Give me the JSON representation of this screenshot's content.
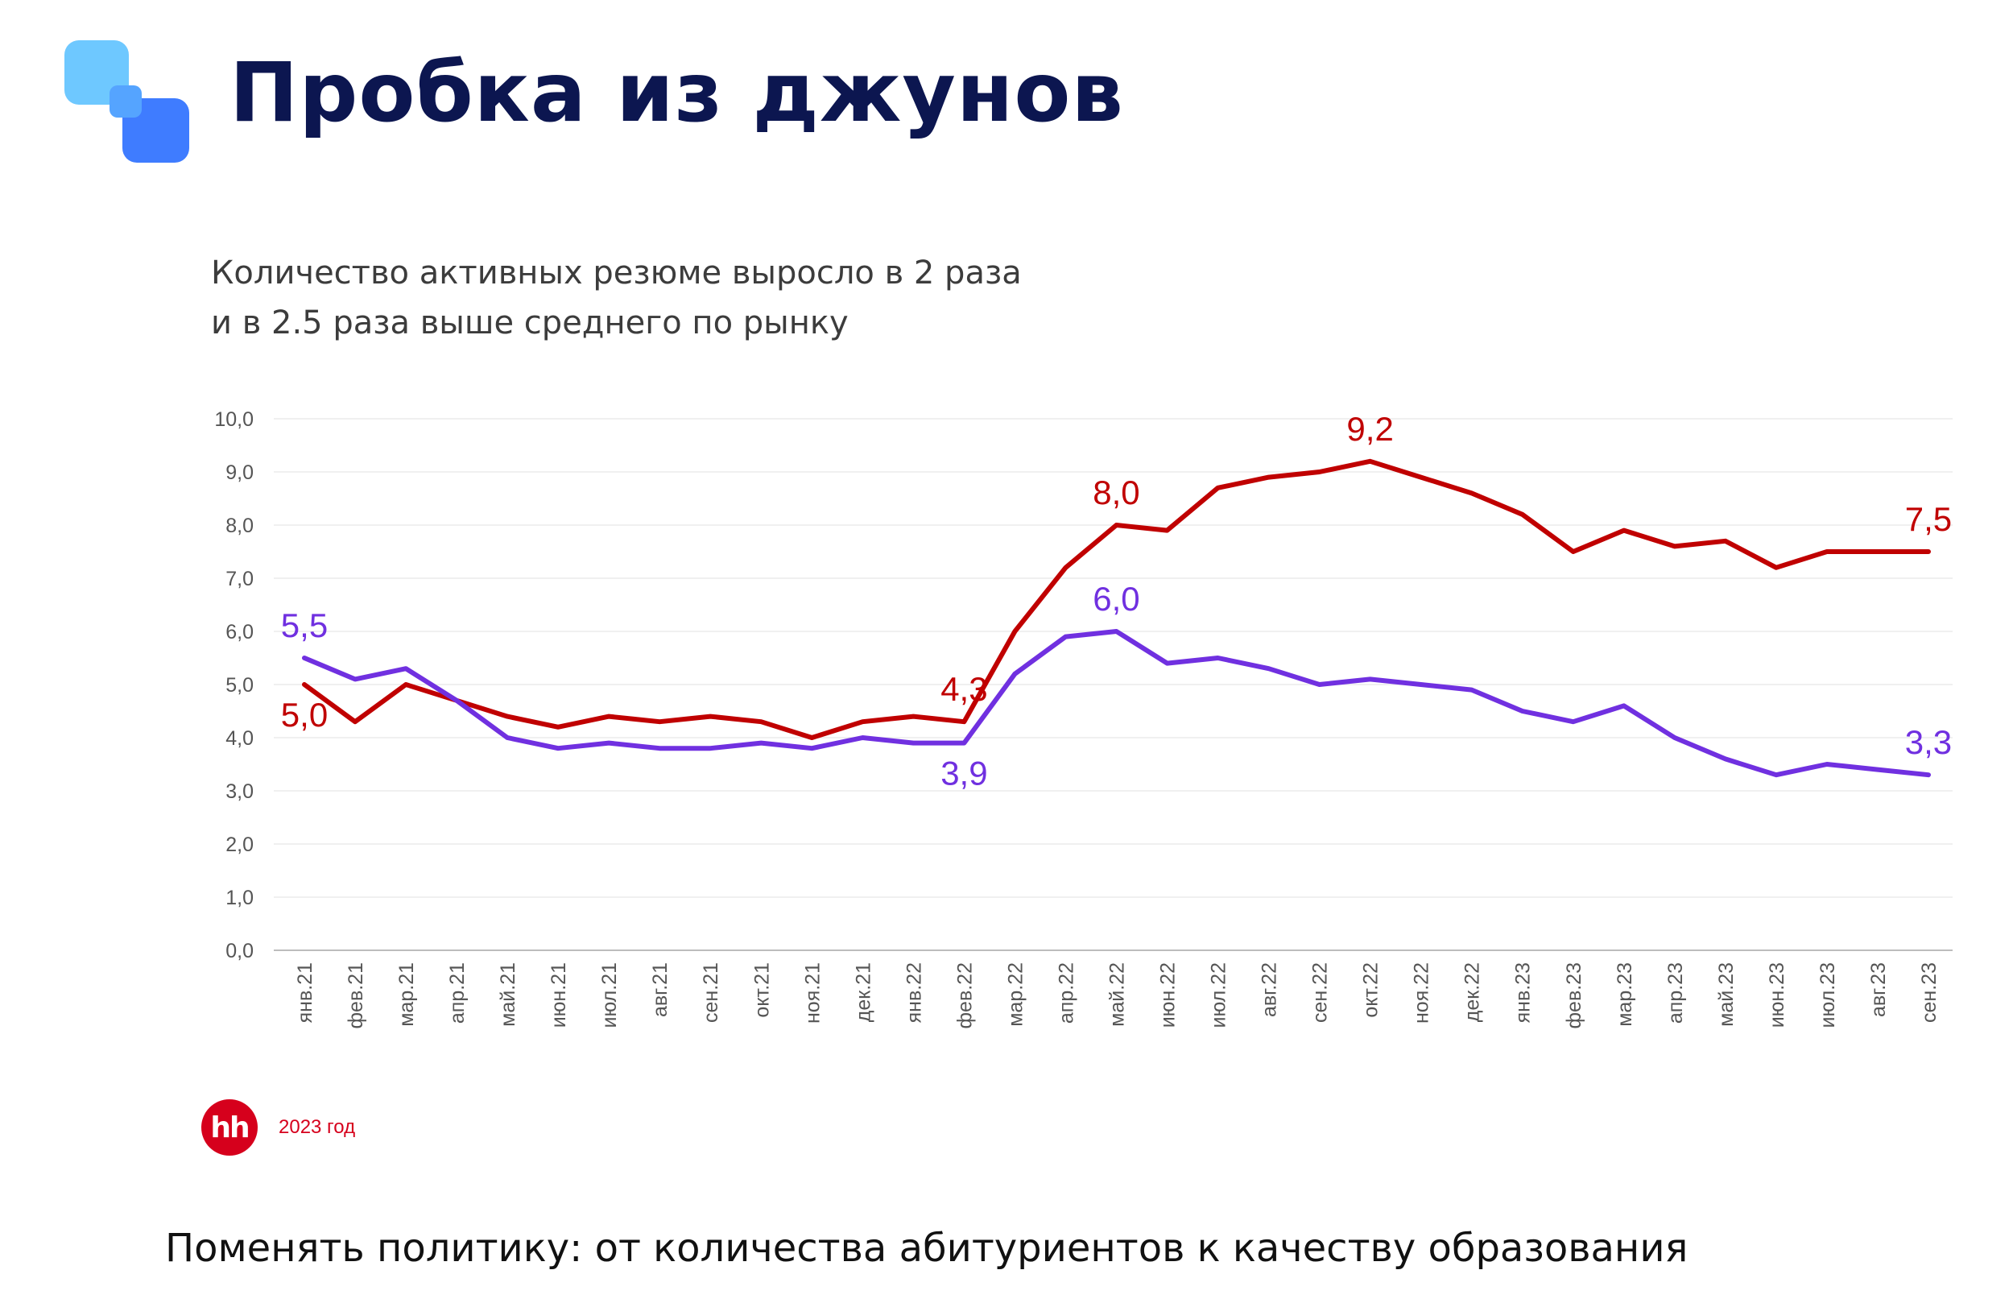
{
  "page": {
    "title": "Пробка из джунов",
    "footer": "Поменять политику: от количества абитуриентов к качеству образования"
  },
  "source": {
    "logo_text": "hh",
    "year_label": "2023 год"
  },
  "colors": {
    "red_series": "#c00000",
    "purple_series": "#7030e0",
    "title": "#0c1650",
    "logo_light": "#6ec8ff",
    "logo_dark": "#3f7cff"
  },
  "chart_data": {
    "type": "line",
    "title_lines": [
      "Количество активных резюме выросло в 2 раза",
      "и в 2.5 раза выше среднего по рынку"
    ],
    "xlabel": "",
    "ylabel": "",
    "ylim": [
      0,
      10
    ],
    "yticks": [
      "0,0",
      "1,0",
      "2,0",
      "3,0",
      "4,0",
      "5,0",
      "6,0",
      "7,0",
      "8,0",
      "9,0",
      "10,0"
    ],
    "grid": true,
    "legend": "none",
    "categories": [
      "янв.21",
      "фев.21",
      "мар.21",
      "апр.21",
      "май.21",
      "июн.21",
      "июл.21",
      "авг.21",
      "сен.21",
      "окт.21",
      "ноя.21",
      "дек.21",
      "янв.22",
      "фев.22",
      "мар.22",
      "апр.22",
      "май.22",
      "июн.22",
      "июл.22",
      "авг.22",
      "сен.22",
      "окт.22",
      "ноя.22",
      "дек.22",
      "янв.23",
      "фев.23",
      "мар.23",
      "апр.23",
      "май.23",
      "июн.23",
      "июл.23",
      "авг.23",
      "сен.23"
    ],
    "series": [
      {
        "color": "#c00000",
        "values": [
          5.0,
          4.3,
          5.0,
          4.7,
          4.4,
          4.2,
          4.4,
          4.3,
          4.4,
          4.3,
          4.0,
          4.3,
          4.4,
          4.3,
          6.0,
          7.2,
          8.0,
          7.9,
          8.7,
          8.9,
          9.0,
          9.2,
          8.9,
          8.6,
          8.2,
          7.5,
          7.9,
          7.6,
          7.7,
          7.2,
          7.5,
          7.5,
          7.5
        ],
        "annotations": [
          {
            "index": 0,
            "text": "5,0",
            "pos": "below"
          },
          {
            "index": 13,
            "text": "4,3",
            "pos": "above"
          },
          {
            "index": 16,
            "text": "8,0",
            "pos": "above"
          },
          {
            "index": 21,
            "text": "9,2",
            "pos": "above"
          },
          {
            "index": 32,
            "text": "7,5",
            "pos": "above"
          }
        ]
      },
      {
        "color": "#7030e0",
        "values": [
          5.5,
          5.1,
          5.3,
          4.7,
          4.0,
          3.8,
          3.9,
          3.8,
          3.8,
          3.9,
          3.8,
          4.0,
          3.9,
          3.9,
          5.2,
          5.9,
          6.0,
          5.4,
          5.5,
          5.3,
          5.0,
          5.1,
          5.0,
          4.9,
          4.5,
          4.3,
          4.6,
          4.0,
          3.6,
          3.3,
          3.5,
          3.4,
          3.3
        ],
        "annotations": [
          {
            "index": 0,
            "text": "5,5",
            "pos": "above"
          },
          {
            "index": 13,
            "text": "3,9",
            "pos": "below"
          },
          {
            "index": 16,
            "text": "6,0",
            "pos": "above"
          },
          {
            "index": 32,
            "text": "3,3",
            "pos": "above"
          }
        ]
      }
    ]
  }
}
